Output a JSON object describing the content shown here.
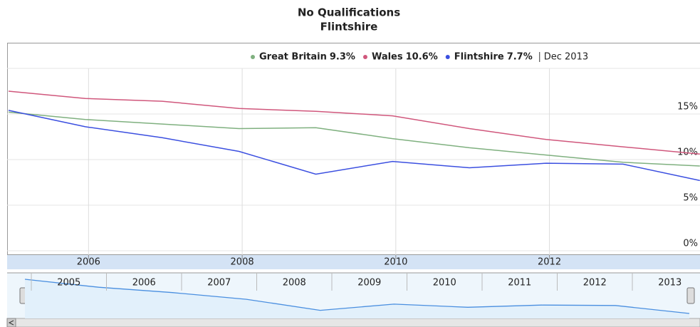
{
  "chart_data": {
    "type": "line",
    "title": "No Qualifications",
    "subtitle": "Flintshire",
    "x": [
      "2004-12",
      "2005-12",
      "2006-12",
      "2007-12",
      "2008-12",
      "2009-12",
      "2010-12",
      "2011-12",
      "2012-12",
      "2013-12"
    ],
    "series": [
      {
        "name": "Great Britain",
        "color": "#7fb07f",
        "legend_label": "9.3%",
        "values": [
          15.2,
          14.4,
          13.9,
          13.4,
          13.5,
          12.3,
          11.3,
          10.5,
          9.7,
          9.3
        ]
      },
      {
        "name": "Wales",
        "color": "#d0577c",
        "legend_label": "10.6%",
        "values": [
          17.5,
          16.7,
          16.4,
          15.6,
          15.3,
          14.8,
          13.4,
          12.2,
          11.4,
          10.6
        ]
      },
      {
        "name": "Flintshire",
        "color": "#3b4fe0",
        "legend_label": "7.7%",
        "values": [
          15.4,
          13.6,
          12.4,
          10.9,
          8.4,
          9.8,
          9.1,
          9.6,
          9.5,
          7.7
        ]
      }
    ],
    "legend_date": "Dec 2013",
    "xlim": [
      2004.94,
      2013.96
    ],
    "xticks": [
      2006,
      2008,
      2010,
      2012
    ],
    "ylim": [
      0,
      20
    ],
    "yticks": [
      {
        "value": 0,
        "label": "0%"
      },
      {
        "value": 5,
        "label": "5%"
      },
      {
        "value": 10,
        "label": "10%"
      },
      {
        "value": 15,
        "label": "15%"
      }
    ],
    "grid": true,
    "navigator_ticks": [
      2005,
      2006,
      2007,
      2008,
      2009,
      2010,
      2011,
      2012,
      2013
    ]
  }
}
